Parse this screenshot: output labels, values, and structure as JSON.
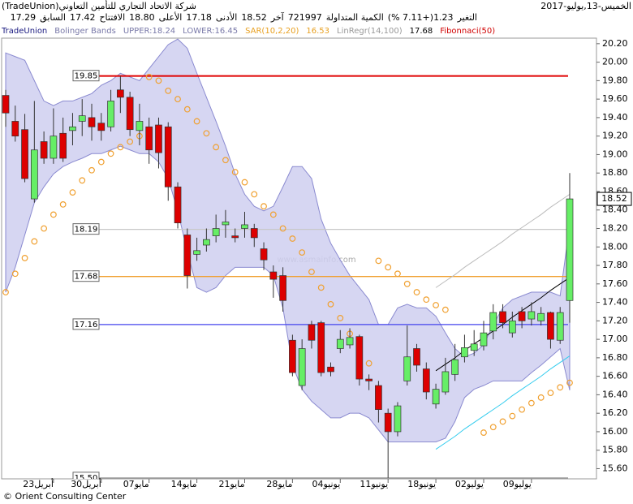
{
  "header": {
    "date": "الخميس-13,يوليو-2017",
    "company": "شركة الاتحاد التجاري للتأمين التعاوني(TradeUnion)",
    "stats": [
      {
        "label": "التغير",
        "value": "1.23(+7.11 %)"
      },
      {
        "label": "الكمية المتداولة",
        "value": "721997"
      },
      {
        "label": "آخر",
        "value": "18.52"
      },
      {
        "label": "الأدنى",
        "value": "17.18"
      },
      {
        "label": "الأعلى",
        "value": "18.80"
      },
      {
        "label": "الافتتاح",
        "value": "17.42"
      },
      {
        "label": "السابق",
        "value": "17.29"
      }
    ]
  },
  "legend": [
    {
      "text": "TradeUnion",
      "color": "#1a1a80"
    },
    {
      "text": "Bolinger Bands",
      "color": "#7878a8"
    },
    {
      "text": "UPPER:18.24",
      "color": "#7878a8"
    },
    {
      "text": "LOWER:16.45",
      "color": "#7878a8"
    },
    {
      "text": "SAR(10,2,20)",
      "color": "#e8a020"
    },
    {
      "text": "16.53",
      "color": "#e8a020"
    },
    {
      "text": "LinRegr(14,100)",
      "color": "#999999"
    },
    {
      "text": "17.68",
      "color": "#000000"
    },
    {
      "text": "Fibonnaci(50)",
      "color": "#d00000"
    }
  ],
  "watermark": "www.asmainfo.com",
  "footer": "© Orient Consulting Center",
  "chart_data": {
    "type": "candlestick",
    "categories": [
      null,
      null,
      null,
      null,
      null,
      "23أبريل",
      null,
      null,
      null,
      null,
      "30أبريل",
      null,
      null,
      null,
      null,
      "07مايو",
      null,
      null,
      null,
      null,
      "14مايو",
      null,
      null,
      null,
      null,
      "21مايو",
      null,
      null,
      null,
      null,
      "28مايو",
      null,
      null,
      null,
      null,
      "04يونيو",
      null,
      null,
      null,
      null,
      "11يونيو",
      null,
      null,
      null,
      null,
      "18يونيو",
      null,
      null,
      null,
      null,
      "02يوليو",
      null,
      null,
      null,
      null,
      "09يوليو",
      null,
      null,
      null,
      null
    ],
    "open": [
      19.64,
      19.36,
      19.27,
      18.52,
      19.14,
      18.96,
      19.23,
      19.26,
      19.36,
      19.4,
      19.34,
      19.3,
      19.7,
      19.62,
      19.26,
      19.3,
      19.32,
      19.3,
      18.65,
      18.13,
      17.92,
      18.02,
      18.12,
      18.24,
      18.12,
      18.2,
      18.2,
      17.98,
      17.73,
      17.69,
      16.99,
      16.5,
      17.16,
      17.18,
      16.7,
      16.9,
      16.94,
      17.03,
      16.57,
      16.5,
      16.2,
      16.0,
      16.55,
      16.9,
      16.68,
      16.3,
      16.43,
      16.62,
      16.81,
      16.88,
      16.93,
      17.09,
      17.3,
      17.07,
      17.3,
      17.22,
      17.2,
      17.29,
      16.99,
      17.42
    ],
    "high": [
      19.7,
      19.53,
      19.44,
      19.58,
      19.25,
      19.5,
      19.4,
      19.45,
      19.6,
      19.55,
      19.45,
      19.7,
      19.85,
      19.68,
      19.55,
      19.4,
      19.4,
      19.35,
      18.7,
      18.2,
      18.1,
      18.2,
      18.35,
      18.4,
      18.2,
      18.38,
      18.25,
      18.05,
      17.8,
      17.78,
      17.05,
      17.0,
      17.2,
      17.2,
      16.75,
      17.1,
      17.12,
      17.05,
      16.62,
      16.55,
      16.25,
      16.32,
      17.15,
      16.95,
      16.75,
      16.52,
      16.8,
      16.95,
      17.05,
      17.1,
      17.2,
      17.38,
      17.38,
      17.3,
      17.35,
      17.4,
      17.35,
      17.3,
      17.35,
      18.8
    ],
    "low": [
      19.3,
      19.14,
      18.7,
      18.48,
      18.9,
      18.9,
      18.92,
      19.1,
      19.2,
      19.15,
      19.15,
      19.25,
      19.45,
      19.2,
      19.1,
      18.9,
      18.85,
      18.5,
      18.2,
      17.55,
      17.85,
      17.95,
      18.05,
      18.1,
      18.05,
      18.1,
      18.0,
      17.75,
      17.45,
      17.3,
      16.6,
      16.45,
      16.9,
      16.6,
      16.6,
      16.85,
      16.9,
      16.5,
      16.45,
      16.1,
      15.5,
      15.95,
      16.5,
      16.65,
      16.35,
      16.25,
      16.4,
      16.55,
      16.75,
      16.82,
      16.88,
      17.0,
      17.12,
      17.02,
      17.12,
      17.15,
      17.15,
      16.9,
      16.95,
      17.18
    ],
    "close": [
      19.45,
      19.2,
      18.74,
      19.05,
      18.96,
      19.2,
      18.96,
      19.3,
      19.42,
      19.3,
      19.26,
      19.58,
      19.62,
      19.27,
      19.36,
      19.05,
      19.02,
      18.65,
      18.26,
      17.69,
      17.96,
      18.08,
      18.2,
      18.27,
      18.1,
      18.24,
      18.1,
      17.86,
      17.65,
      17.42,
      16.64,
      16.9,
      16.99,
      16.64,
      16.65,
      17.0,
      17.02,
      16.57,
      16.55,
      16.24,
      16.0,
      16.28,
      16.81,
      16.72,
      16.43,
      16.46,
      16.65,
      16.78,
      16.91,
      16.95,
      17.07,
      17.29,
      17.18,
      17.2,
      17.2,
      17.3,
      17.28,
      17.0,
      17.29,
      18.52
    ],
    "up_color": "#66ee66",
    "down_color": "#dd0000",
    "bands": {
      "color": "#8a8ad0",
      "fill": "#cfcff0",
      "upper": [
        20.1,
        20.06,
        20.02,
        19.8,
        19.58,
        19.53,
        19.58,
        19.58,
        19.62,
        19.66,
        19.75,
        19.8,
        19.88,
        19.84,
        19.8,
        19.93,
        20.06,
        20.19,
        20.25,
        20.15,
        19.88,
        19.62,
        19.36,
        19.09,
        18.79,
        18.57,
        18.44,
        18.39,
        18.44,
        18.65,
        18.87,
        18.87,
        18.74,
        18.3,
        18.04,
        17.86,
        17.69,
        17.56,
        17.43,
        17.16,
        17.16,
        17.34,
        17.38,
        17.34,
        17.34,
        17.25,
        17.07,
        16.9,
        16.81,
        16.85,
        16.94,
        17.16,
        17.34,
        17.43,
        17.47,
        17.51,
        17.51,
        17.51,
        17.47,
        18.24
      ],
      "lower": [
        17.51,
        17.78,
        18.13,
        18.48,
        18.65,
        18.79,
        18.87,
        18.92,
        18.96,
        19.01,
        19.01,
        19.05,
        19.09,
        19.05,
        19.01,
        19.01,
        18.92,
        18.74,
        18.39,
        17.95,
        17.56,
        17.51,
        17.56,
        17.69,
        17.78,
        17.78,
        17.78,
        17.78,
        17.69,
        17.34,
        16.72,
        16.46,
        16.33,
        16.24,
        16.15,
        16.15,
        16.2,
        16.2,
        16.15,
        16.02,
        15.89,
        15.89,
        15.89,
        15.89,
        15.89,
        15.89,
        15.93,
        16.11,
        16.37,
        16.46,
        16.5,
        16.55,
        16.55,
        16.55,
        16.55,
        16.64,
        16.72,
        16.81,
        16.9,
        16.45
      ]
    },
    "sar": {
      "color": "#f0a030",
      "values": [
        17.51,
        17.71,
        17.88,
        18.06,
        18.2,
        18.35,
        18.46,
        18.59,
        18.72,
        18.83,
        18.92,
        19.01,
        19.08,
        19.14,
        19.2,
        19.84,
        19.8,
        19.69,
        19.6,
        19.49,
        19.36,
        19.23,
        19.08,
        18.94,
        18.81,
        18.7,
        18.57,
        18.44,
        18.35,
        18.2,
        18.09,
        17.94,
        17.73,
        17.56,
        17.38,
        17.23,
        17.06,
        16.9,
        16.74,
        17.85,
        17.78,
        17.71,
        17.6,
        17.51,
        17.43,
        17.37,
        17.32,
        null,
        null,
        null,
        15.99,
        16.05,
        16.11,
        16.17,
        16.24,
        16.31,
        16.37,
        16.42,
        16.48,
        16.53
      ]
    },
    "linreg": {
      "colors": [
        "#000000",
        "#bbbbbb",
        "#33ccee"
      ],
      "center": [
        null,
        null,
        null,
        null,
        null,
        null,
        null,
        null,
        null,
        null,
        null,
        null,
        null,
        null,
        null,
        null,
        null,
        null,
        null,
        null,
        null,
        null,
        null,
        null,
        null,
        null,
        null,
        null,
        null,
        null,
        null,
        null,
        null,
        null,
        null,
        null,
        null,
        null,
        null,
        null,
        null,
        null,
        null,
        null,
        null,
        16.66,
        16.73,
        16.8,
        16.88,
        16.95,
        17.02,
        17.09,
        17.16,
        17.24,
        17.31,
        17.38,
        17.45,
        17.53,
        17.6,
        17.67
      ],
      "upper": [
        null,
        null,
        null,
        null,
        null,
        null,
        null,
        null,
        null,
        null,
        null,
        null,
        null,
        null,
        null,
        null,
        null,
        null,
        null,
        null,
        null,
        null,
        null,
        null,
        null,
        null,
        null,
        null,
        null,
        null,
        null,
        null,
        null,
        null,
        null,
        null,
        null,
        null,
        null,
        null,
        null,
        null,
        null,
        null,
        null,
        17.56,
        17.63,
        17.7,
        17.78,
        17.85,
        17.92,
        17.99,
        18.06,
        18.14,
        18.21,
        18.28,
        18.35,
        18.43,
        18.5,
        18.57
      ],
      "lower": [
        null,
        null,
        null,
        null,
        null,
        null,
        null,
        null,
        null,
        null,
        null,
        null,
        null,
        null,
        null,
        null,
        null,
        null,
        null,
        null,
        null,
        null,
        null,
        null,
        null,
        null,
        null,
        null,
        null,
        null,
        null,
        null,
        null,
        null,
        null,
        null,
        null,
        null,
        null,
        null,
        null,
        null,
        null,
        null,
        null,
        15.81,
        15.88,
        15.95,
        16.03,
        16.1,
        16.17,
        16.24,
        16.31,
        16.39,
        16.46,
        16.53,
        16.6,
        16.68,
        16.75,
        16.82
      ]
    },
    "fibonacci": {
      "levels": [
        19.85,
        18.19,
        17.68,
        17.16,
        {
          "value": 15.5,
          "label": "15.50"
        }
      ],
      "colors": [
        "#e00000",
        "#c8c8c8",
        "#f0a030",
        "#4444ee",
        "#999999"
      ]
    },
    "ylim": [
      15.49,
      20.26
    ],
    "yticks": [
      {
        "value": 20.2,
        "label": "20.20"
      },
      {
        "value": 20.0,
        "label": "20.00"
      },
      {
        "value": 19.8,
        "label": "19.80"
      },
      {
        "value": 19.6,
        "label": "19.60"
      },
      {
        "value": 19.4,
        "label": "19.40"
      },
      {
        "value": 19.2,
        "label": "19.20"
      },
      {
        "value": 19.0,
        "label": "19.00"
      },
      {
        "value": 18.8,
        "label": "18.80"
      },
      {
        "value": 18.6,
        "label": "18.60"
      },
      {
        "value": 18.4,
        "label": "18.40"
      },
      {
        "value": 18.2,
        "label": "18.20"
      },
      {
        "value": 18.0,
        "label": "18.00"
      },
      {
        "value": 17.8,
        "label": "17.80"
      },
      {
        "value": 17.6,
        "label": "17.60"
      },
      {
        "value": 17.4,
        "label": "17.40"
      },
      {
        "value": 17.2,
        "label": "17.20"
      },
      {
        "value": 17.0,
        "label": "17.00"
      },
      {
        "value": 16.8,
        "label": "16.80"
      },
      {
        "value": 16.6,
        "label": "16.60"
      },
      {
        "value": 16.4,
        "label": "16.40"
      },
      {
        "value": 16.2,
        "label": "16.20"
      },
      {
        "value": 16.0,
        "label": "16.00"
      },
      {
        "value": 15.8,
        "label": "15.80"
      },
      {
        "value": 15.6,
        "label": "15.60"
      }
    ]
  }
}
